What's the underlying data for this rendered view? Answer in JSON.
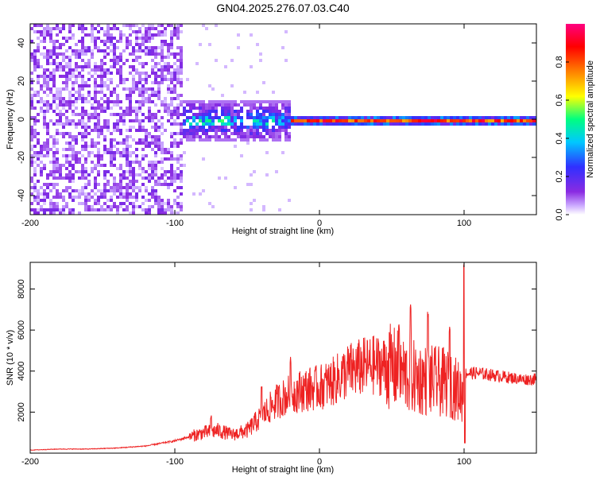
{
  "chart_data": [
    {
      "type": "heatmap",
      "title": "GN04.2025.276.07.03.C40",
      "xlabel": "Height of straight line (km)",
      "ylabel": "Frequency (Hz)",
      "xlim": [
        -200,
        150
      ],
      "ylim": [
        -50,
        50
      ],
      "xticks": [
        -200,
        -100,
        0,
        100
      ],
      "yticks": [
        -40,
        -20,
        0,
        20,
        40
      ],
      "colorbar": {
        "label": "Normalized spectral amplitude",
        "range": [
          0,
          1
        ],
        "ticks": [
          0.0,
          0.2,
          0.4,
          0.6,
          0.8
        ],
        "colormap": [
          "#ffffff",
          "#c9a6ff",
          "#8a2be2",
          "#3030ff",
          "#00c8ff",
          "#00ff80",
          "#ffff00",
          "#ff8000",
          "#ff0000",
          "#ff0080"
        ]
      },
      "regions": [
        {
          "x_range": [
            -200,
            -95
          ],
          "freq_spread_hz": 50,
          "amplitude": 0.08,
          "description": "diffuse noise"
        },
        {
          "x_range": [
            -95,
            -20
          ],
          "freq_spread_hz": 10,
          "amplitude": 0.3
        },
        {
          "x_range": [
            -20,
            150
          ],
          "freq_spread_hz": 2,
          "amplitude": 0.95,
          "center_hz": 0
        }
      ]
    },
    {
      "type": "line",
      "xlabel": "Height of straight line (km)",
      "ylabel": "SNR (10 * v/v)",
      "xlim": [
        -200,
        150
      ],
      "ylim": [
        0,
        9300
      ],
      "xticks": [
        -200,
        -100,
        0,
        100
      ],
      "yticks": [
        2000,
        4000,
        6000,
        8000
      ],
      "series": [
        {
          "name": "SNR",
          "color": "#ee2222",
          "x": [
            -200,
            -180,
            -160,
            -140,
            -120,
            -100,
            -90,
            -80,
            -70,
            -60,
            -50,
            -40,
            -30,
            -20,
            -10,
            0,
            10,
            20,
            30,
            40,
            50,
            60,
            70,
            80,
            90,
            100,
            101,
            110,
            120,
            130,
            140,
            150
          ],
          "y": [
            150,
            200,
            200,
            250,
            350,
            600,
            800,
            1000,
            1100,
            900,
            1100,
            1800,
            2500,
            2900,
            3100,
            3200,
            3500,
            4000,
            4200,
            4300,
            4200,
            3800,
            3600,
            3500,
            3400,
            2800,
            3900,
            3900,
            3800,
            3700,
            3600,
            3600
          ],
          "peaks": [
            {
              "x": -75,
              "y": 1900
            },
            {
              "x": -40,
              "y": 3300
            },
            {
              "x": -20,
              "y": 4700
            },
            {
              "x": 55,
              "y": 6300
            },
            {
              "x": 63,
              "y": 7300
            },
            {
              "x": 75,
              "y": 6900
            },
            {
              "x": 90,
              "y": 6200
            },
            {
              "x": 100,
              "y": 9300
            }
          ]
        }
      ]
    }
  ]
}
